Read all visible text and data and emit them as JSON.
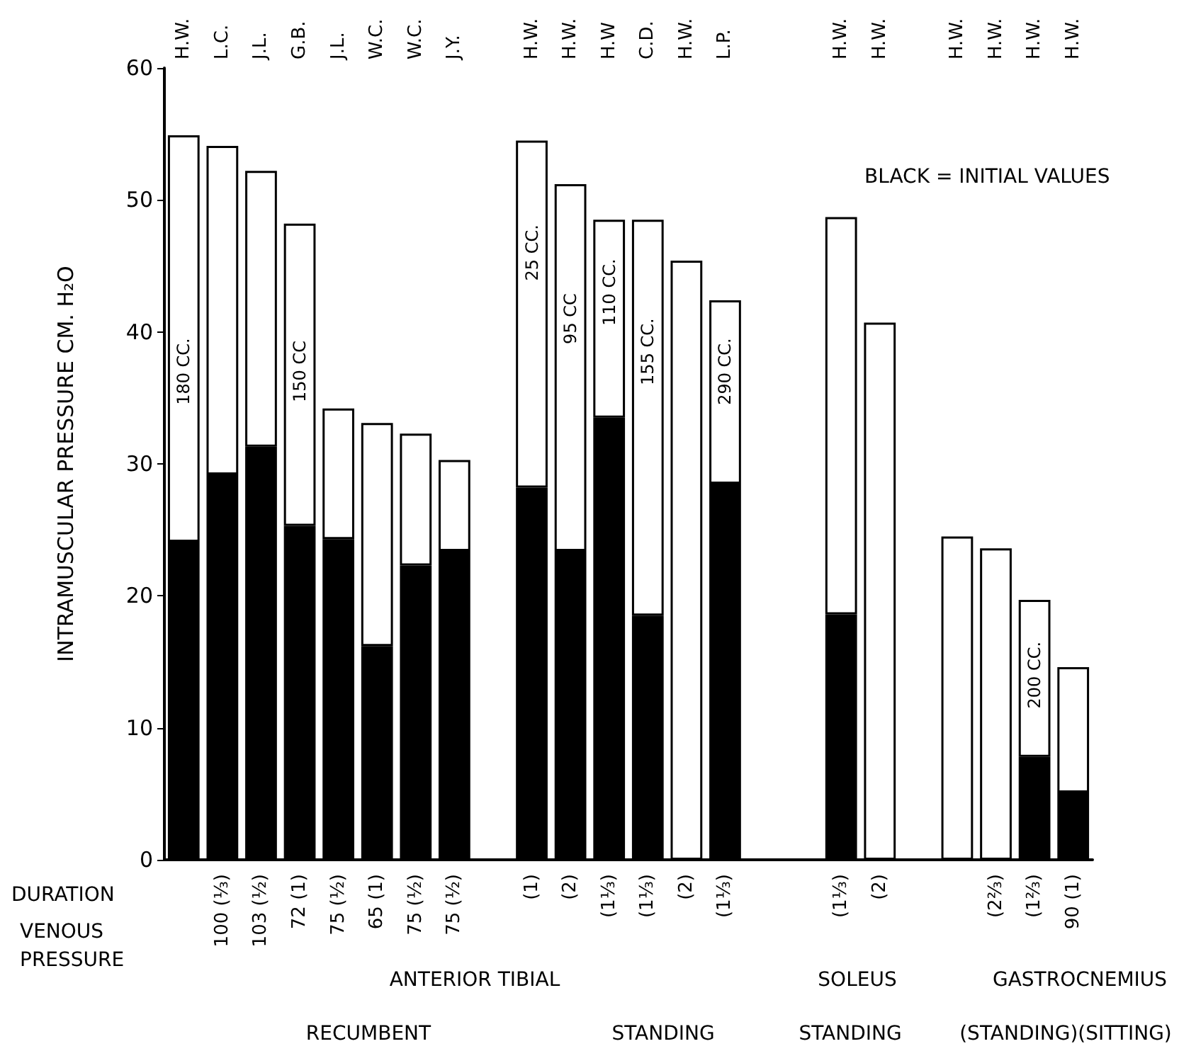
{
  "chart_data": {
    "type": "bar",
    "stacked": true,
    "ylabel": "INTRAMUSCULAR PRESSURE CM. H₂O",
    "categories": [
      "H.W.",
      "L.C.",
      "J.L.",
      "G.B.",
      "J.L.",
      "W.C.",
      "W.C.",
      "J.Y.",
      null,
      "H.W.",
      "H.W.",
      "H.W",
      "C.D.",
      "H.W.",
      "L.P.",
      null,
      null,
      "H.W.",
      "H.W.",
      null,
      "H.W.",
      "H.W.",
      "H.W.",
      "H.W."
    ],
    "series": [
      {
        "color": "#000000",
        "values": [
          24.1,
          29.2,
          31.3,
          25.3,
          24.3,
          16.2,
          22.3,
          23.4,
          null,
          28.2,
          23.4,
          33.5,
          18.5,
          null,
          28.5,
          null,
          null,
          18.6,
          null,
          null,
          null,
          null,
          7.8,
          5.1
        ]
      },
      {
        "color": "#ffffff",
        "values": [
          30.8,
          24.9,
          20.9,
          22.9,
          9.9,
          16.9,
          10.0,
          6.9,
          null,
          26.3,
          27.8,
          15.0,
          30.0,
          45.4,
          13.9,
          null,
          null,
          30.1,
          40.7,
          null,
          24.5,
          23.6,
          11.9,
          9.5
        ]
      }
    ],
    "ylim": [
      0,
      60
    ],
    "yticks": [
      0,
      10,
      20,
      30,
      40,
      50,
      60
    ],
    "annotations": [
      "BLACK = INITIAL VALUES",
      "180 CC.",
      "150 CC",
      "25 CC.",
      "95 CC",
      "110 CC.",
      "155 CC.",
      "290 CC.",
      "200 CC.",
      "DURATION",
      "VENOUS PRESSURE",
      "100 (⅓)",
      "103 (½)",
      "72 (1)",
      "75 (½)",
      "65 (1)",
      "75 (½)",
      "75 (½)",
      "(1)",
      "(2)",
      "(1⅓)",
      "(1⅓)",
      "(2)",
      "(1⅓)",
      "(1⅓)",
      "(2)",
      "(2⅔)",
      "(1⅔)",
      "90 (1)",
      "ANTERIOR TIBIAL",
      "SOLEUS",
      "GASTROCNEMIUS",
      "RECUMBENT",
      "STANDING",
      "STANDING",
      "(STANDING)(SITTING)"
    ]
  }
}
